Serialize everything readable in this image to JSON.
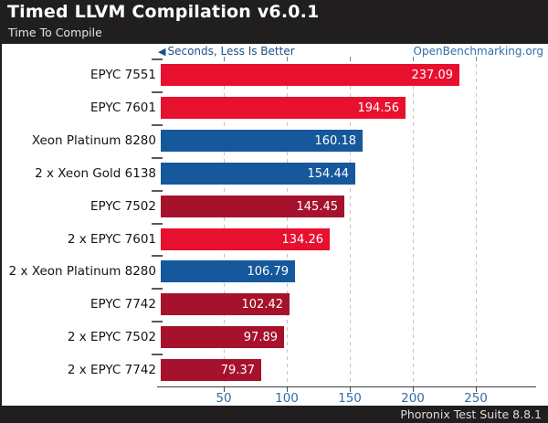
{
  "header": {
    "title": "Timed LLVM Compilation v6.0.1",
    "subtitle": "Time To Compile"
  },
  "legend": {
    "arrow": "◀",
    "label": "Seconds, Less Is Better",
    "watermark": "OpenBenchmarking.org"
  },
  "footer": {
    "text": "Phoronix Test Suite 8.8.1"
  },
  "colors": {
    "header_bg": "#211e1f",
    "bright_red": "#e8102f",
    "dark_red": "#a6122c",
    "blue": "#16589c",
    "legend_blue": "#1a4f8a",
    "watermark_blue": "#2e6ea6",
    "xtick_blue": "#2d6da8"
  },
  "chart_data": {
    "type": "bar",
    "orientation": "horizontal",
    "title": "Timed LLVM Compilation v6.0.1",
    "subtitle": "Time To Compile",
    "xlabel": "Seconds, Less Is Better",
    "categories": [
      "EPYC 7551",
      "EPYC 7601",
      "Xeon Platinum 8280",
      "2 x Xeon Gold 6138",
      "EPYC 7502",
      "2 x EPYC 7601",
      "2 x Xeon Platinum 8280",
      "EPYC 7742",
      "2 x EPYC 7502",
      "2 x EPYC 7742"
    ],
    "values": [
      237.09,
      194.56,
      160.18,
      154.44,
      145.45,
      134.26,
      106.79,
      102.42,
      97.89,
      79.37
    ],
    "bar_colors": [
      "#e8102f",
      "#e8102f",
      "#16589c",
      "#16589c",
      "#a6122c",
      "#e8102f",
      "#16589c",
      "#a6122c",
      "#a6122c",
      "#a6122c"
    ],
    "value_decimals": 2,
    "xticks": [
      50,
      100,
      150,
      200,
      250
    ],
    "xlim": [
      0,
      298
    ],
    "grid": "vertical-dashed",
    "legend_position": "none"
  }
}
